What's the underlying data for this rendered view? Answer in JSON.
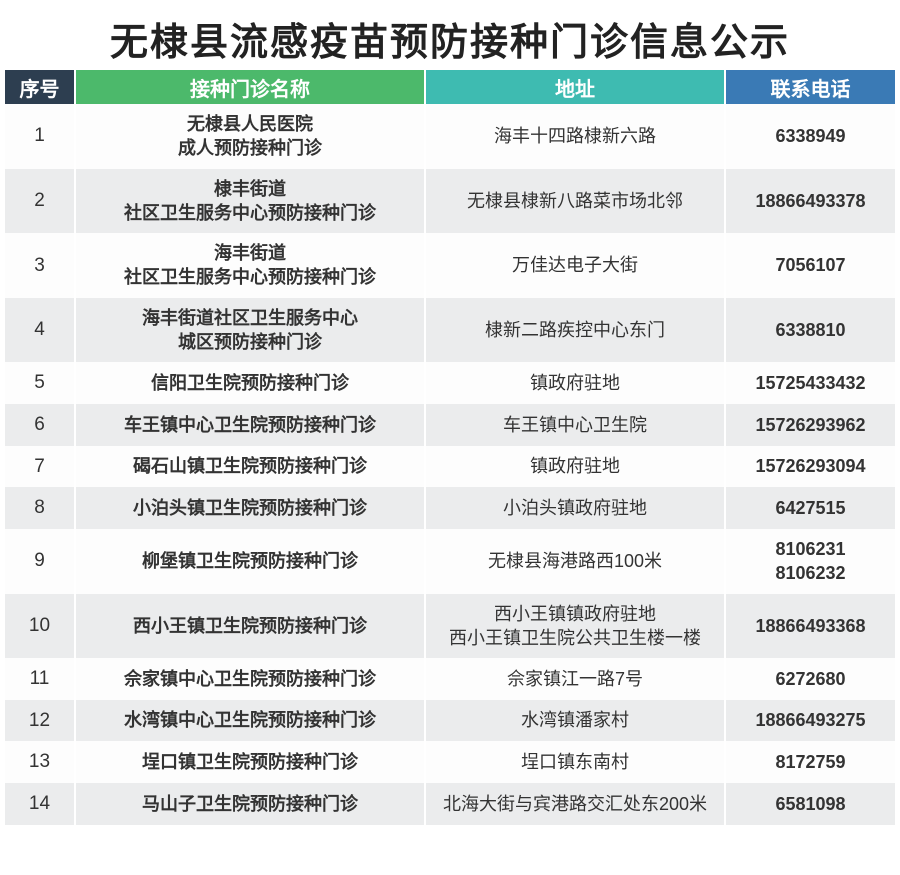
{
  "title": "无棣县流感疫苗预防接种门诊信息公示",
  "header": {
    "cols": [
      "序号",
      "接种门诊名称",
      "地址",
      "联系电话"
    ],
    "widths": [
      70,
      350,
      300,
      170
    ],
    "bg_colors": [
      "#2d3e50",
      "#4cb96b",
      "#3ebbb1",
      "#3a7ab5"
    ]
  },
  "row_colors": {
    "odd": "#fdfdfd",
    "even": "#ebeced"
  },
  "title_style": {
    "fontsize": 38,
    "color": "#222222"
  },
  "cell_style": {
    "fontsize": 18,
    "bold_cols": [
      1,
      3
    ],
    "plain_cols": [
      0,
      2
    ]
  },
  "rows": [
    {
      "idx": "1",
      "name": "无棣县人民医院\n成人预防接种门诊",
      "addr": "海丰十四路棣新六路",
      "tel": "6338949"
    },
    {
      "idx": "2",
      "name": "棣丰街道\n社区卫生服务中心预防接种门诊",
      "addr": "无棣县棣新八路菜市场北邻",
      "tel": "18866493378"
    },
    {
      "idx": "3",
      "name": "海丰街道\n社区卫生服务中心预防接种门诊",
      "addr": "万佳达电子大街",
      "tel": "7056107"
    },
    {
      "idx": "4",
      "name": "海丰街道社区卫生服务中心\n城区预防接种门诊",
      "addr": "棣新二路疾控中心东门",
      "tel": "6338810"
    },
    {
      "idx": "5",
      "name": "信阳卫生院预防接种门诊",
      "addr": "镇政府驻地",
      "tel": "15725433432"
    },
    {
      "idx": "6",
      "name": "车王镇中心卫生院预防接种门诊",
      "addr": "车王镇中心卫生院",
      "tel": "15726293962"
    },
    {
      "idx": "7",
      "name": "碣石山镇卫生院预防接种门诊",
      "addr": "镇政府驻地",
      "tel": "15726293094"
    },
    {
      "idx": "8",
      "name": "小泊头镇卫生院预防接种门诊",
      "addr": "小泊头镇政府驻地",
      "tel": "6427515"
    },
    {
      "idx": "9",
      "name": "柳堡镇卫生院预防接种门诊",
      "addr": "无棣县海港路西100米",
      "tel": "8106231\n8106232"
    },
    {
      "idx": "10",
      "name": "西小王镇卫生院预防接种门诊",
      "addr": "西小王镇镇政府驻地\n西小王镇卫生院公共卫生楼一楼",
      "tel": "18866493368"
    },
    {
      "idx": "11",
      "name": "佘家镇中心卫生院预防接种门诊",
      "addr": "佘家镇江一路7号",
      "tel": "6272680"
    },
    {
      "idx": "12",
      "name": "水湾镇中心卫生院预防接种门诊",
      "addr": "水湾镇潘家村",
      "tel": "18866493275"
    },
    {
      "idx": "13",
      "name": "埕口镇卫生院预防接种门诊",
      "addr": "埕口镇东南村",
      "tel": "8172759"
    },
    {
      "idx": "14",
      "name": "马山子卫生院预防接种门诊",
      "addr": "北海大街与宾港路交汇处东200米",
      "tel": "6581098"
    }
  ]
}
